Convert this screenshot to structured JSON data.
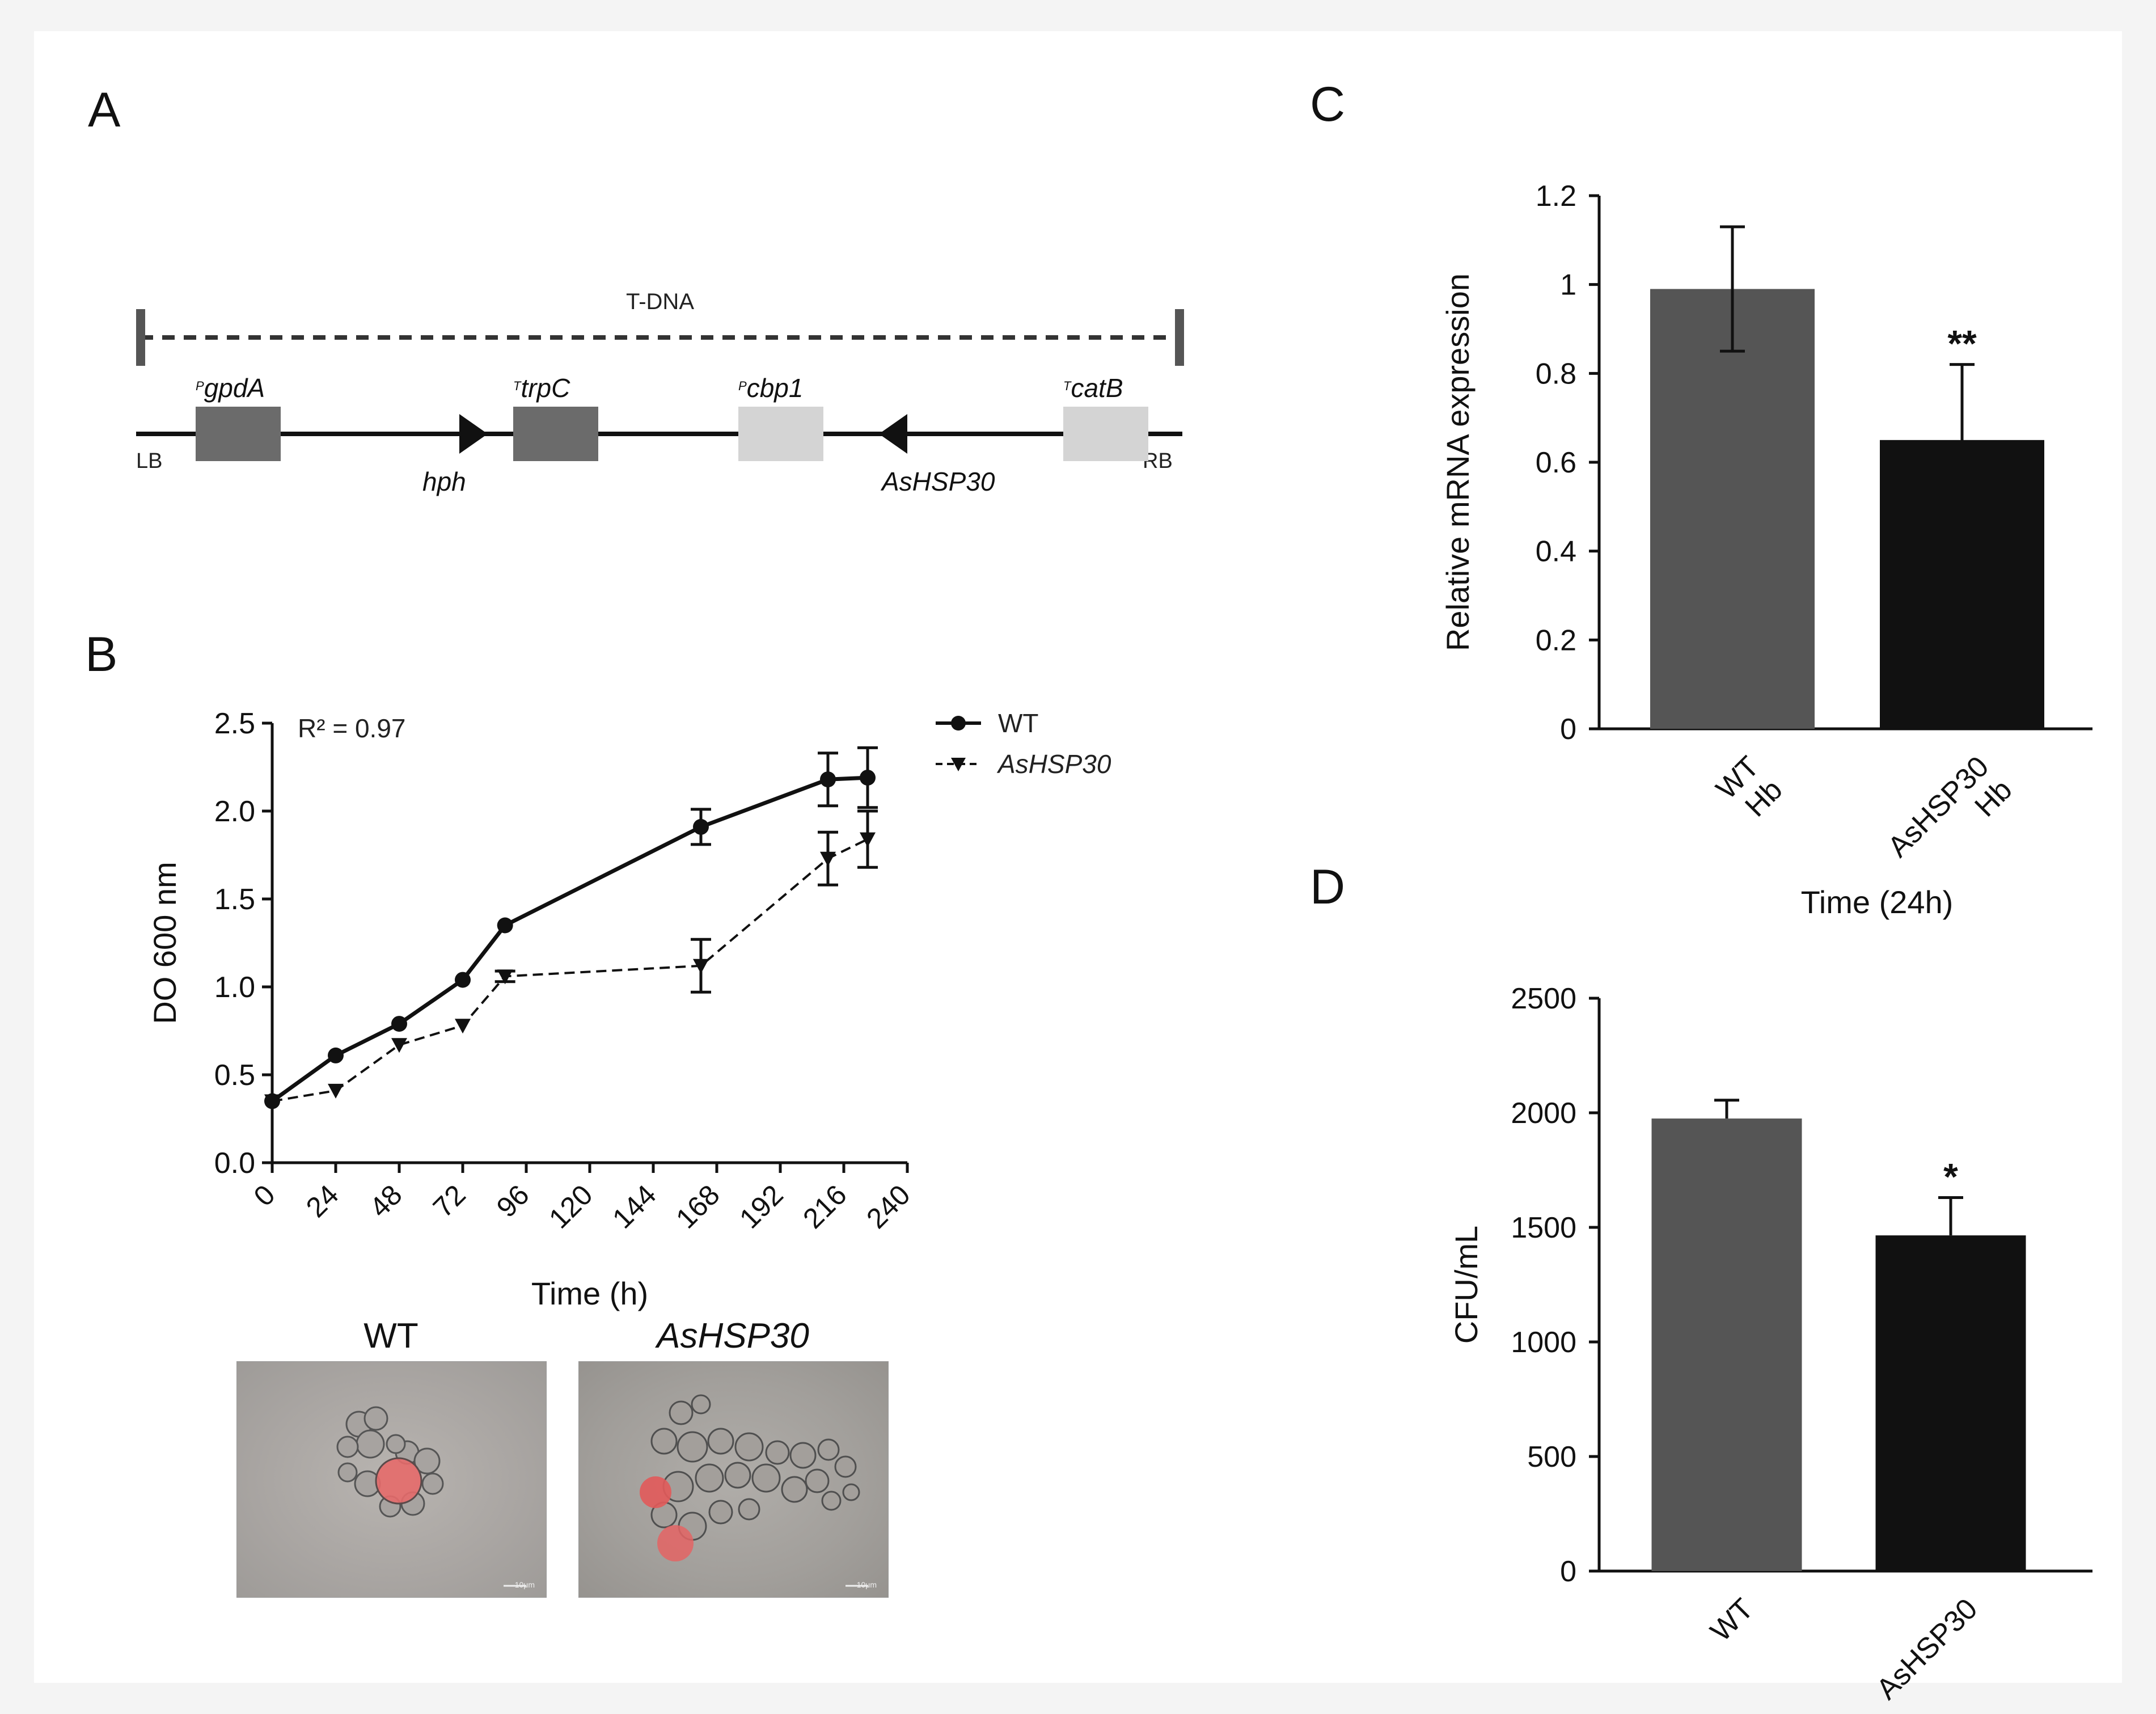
{
  "panels": {
    "a": "A",
    "b": "B",
    "c": "C",
    "d": "D"
  },
  "construct": {
    "tdna_label": "T-DNA",
    "left_border": "LB",
    "right_border": "RB",
    "elements": [
      {
        "prefix": "P",
        "name": "gpdA",
        "color": "#6b6b6b"
      },
      {
        "prefix": "T",
        "name": "trpC",
        "color": "#6b6b6b"
      },
      {
        "prefix": "P",
        "name": "cbp1",
        "color": "#d4d4d4"
      },
      {
        "prefix": "T",
        "name": "catB",
        "color": "#d4d4d4"
      }
    ],
    "genes": [
      "hph",
      "AsHSP30"
    ]
  },
  "chart_data": [
    {
      "id": "B",
      "type": "line",
      "title": "",
      "xlabel": "Time (h)",
      "ylabel": "DO 600 nm",
      "annotation": "R² = 0.97",
      "xticks": [
        0,
        24,
        48,
        72,
        96,
        120,
        144,
        168,
        192,
        216,
        240
      ],
      "yticks": [
        "0.0",
        "0.5",
        "1.0",
        "1.5",
        "2.0",
        "2.5"
      ],
      "xlim": [
        0,
        240
      ],
      "ylim": [
        0,
        2.5
      ],
      "series": [
        {
          "name": "WT",
          "x": [
            0,
            24,
            48,
            72,
            88,
            162,
            210,
            225
          ],
          "y": [
            0.35,
            0.61,
            0.79,
            1.04,
            1.35,
            1.91,
            2.18,
            2.19
          ],
          "err": [
            0,
            0,
            0,
            0,
            0,
            0.1,
            0.15,
            0.17
          ],
          "marker": "circle",
          "dash": "solid"
        },
        {
          "name": "AsHSP30",
          "x": [
            0,
            24,
            48,
            72,
            88,
            162,
            210,
            225
          ],
          "y": [
            0.35,
            0.41,
            0.67,
            0.78,
            1.06,
            1.12,
            1.73,
            1.84
          ],
          "err": [
            0,
            0,
            0,
            0,
            0.03,
            0.15,
            0.15,
            0.16
          ],
          "marker": "triangle-down",
          "dash": "dashed"
        }
      ]
    },
    {
      "id": "C",
      "type": "bar",
      "xlabel": "Time (24h)",
      "ylabel": "Relative mRNA expression",
      "categories": [
        [
          "WT",
          "Hb"
        ],
        [
          "AsHSP30",
          "Hb"
        ]
      ],
      "values": [
        0.99,
        0.65
      ],
      "errors": [
        0.14,
        0.17
      ],
      "significance": [
        "",
        "**"
      ],
      "colors": [
        "#555555",
        "#111111"
      ],
      "yticks": [
        "0",
        "0.2",
        "0.4",
        "0.6",
        "0.8",
        "1",
        "1.2"
      ],
      "ylim": [
        0,
        1.2
      ]
    },
    {
      "id": "D",
      "type": "bar",
      "xlabel": "",
      "ylabel": "CFU/mL",
      "categories": [
        "WT",
        "AsHSP30"
      ],
      "values": [
        1975,
        1465
      ],
      "errors": [
        80,
        165
      ],
      "significance": [
        "",
        "*"
      ],
      "colors": [
        "#555555",
        "#111111"
      ],
      "yticks": [
        "0",
        "500",
        "1000",
        "1500",
        "2000",
        "2500"
      ],
      "ylim": [
        0,
        2500
      ]
    }
  ],
  "micrographs": [
    {
      "title": "WT",
      "scale": "10μm"
    },
    {
      "title": "AsHSP30",
      "scale": "10μm"
    }
  ]
}
